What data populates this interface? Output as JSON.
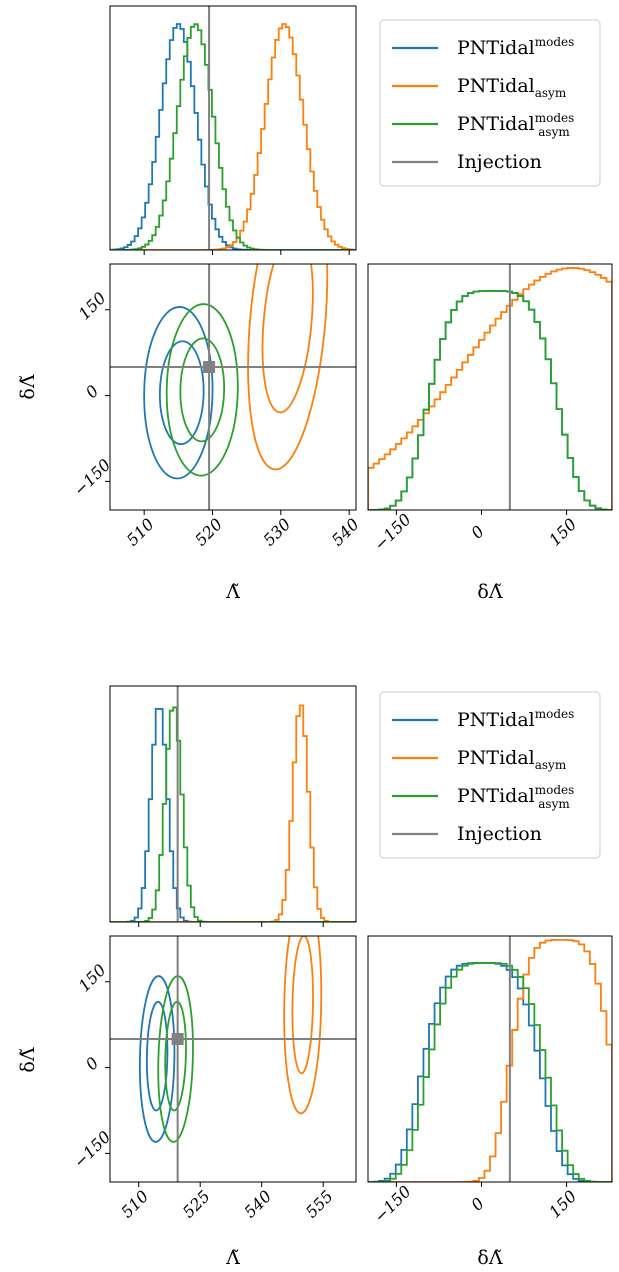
{
  "colors": {
    "modes": "#1f77b4",
    "asym": "#ff7f0e",
    "modes_asym": "#2ca02c",
    "injection": "#808080"
  },
  "legend": {
    "entries": [
      {
        "base": "PNTidal",
        "sup": "modes",
        "sub": "",
        "color": "modes"
      },
      {
        "base": "PNTidal",
        "sup": "",
        "sub": "asym",
        "color": "asym"
      },
      {
        "base": "PNTidal",
        "sup": "modes",
        "sub": "asym",
        "color": "modes_asym"
      },
      {
        "base": "Injection",
        "sup": "",
        "sub": "",
        "color": "injection"
      }
    ]
  },
  "chart_data": [
    {
      "type": "corner",
      "xlabel": "Λ̃",
      "ylabel": "δΛ̃",
      "lambda_range": [
        505,
        541
      ],
      "lambda_ticks": [
        510,
        520,
        530,
        540
      ],
      "dlambda_range": [
        -200,
        230
      ],
      "dlambda_ticks": [
        -150,
        0,
        150
      ],
      "injection": {
        "lambda": 519.5,
        "dlambda": 50
      },
      "series": [
        {
          "name": "PNTidal^modes",
          "color": "modes",
          "lambda_mean": 515,
          "lambda_sd": 2.6,
          "dlambda_shape": "hump",
          "dlambda_center": 20,
          "dlambda_width": 140,
          "contours": [
            {
              "cx": 515.5,
              "cy": 5,
              "rx": 3.2,
              "ry": 90,
              "rot": 0.05
            },
            {
              "cx": 515,
              "cy": 5,
              "rx": 5.0,
              "ry": 150,
              "rot": 0.05
            }
          ]
        },
        {
          "name": "PNTidal_asym",
          "color": "asym",
          "lambda_mean": 530.5,
          "lambda_sd": 2.8,
          "dlambda_shape": "rising",
          "dlambda_center": 160,
          "dlambda_width": 190,
          "contours": [
            {
              "cx": 531,
              "cy": 130,
              "rx": 3.5,
              "ry": 160,
              "rot": 0.25
            },
            {
              "cx": 531,
              "cy": 130,
              "rx": 5.5,
              "ry": 260,
              "rot": 0.25
            }
          ]
        },
        {
          "name": "PNTidal^modes_asym",
          "color": "modes_asym",
          "lambda_mean": 517.5,
          "lambda_sd": 2.6,
          "dlambda_shape": "hump",
          "dlambda_center": 20,
          "dlambda_width": 140,
          "contours": [
            {
              "cx": 518.5,
              "cy": 10,
              "rx": 3.2,
              "ry": 90,
              "rot": 0.05
            },
            {
              "cx": 518.5,
              "cy": 10,
              "rx": 5.2,
              "ry": 150,
              "rot": 0.05
            }
          ]
        }
      ]
    },
    {
      "type": "corner",
      "xlabel": "Λ̃",
      "ylabel": "δΛ̃",
      "lambda_range": [
        503,
        563
      ],
      "lambda_ticks": [
        510,
        525,
        540,
        555
      ],
      "dlambda_range": [
        -200,
        230
      ],
      "dlambda_ticks": [
        -150,
        0,
        150
      ],
      "injection": {
        "lambda": 519.5,
        "dlambda": 50
      },
      "series": [
        {
          "name": "PNTidal^modes",
          "color": "modes",
          "lambda_mean": 515,
          "lambda_sd": 2.0,
          "dlambda_shape": "hump",
          "dlambda_center": 0,
          "dlambda_width": 130,
          "contours": [
            {
              "cx": 514.5,
              "cy": 20,
              "rx": 2.5,
              "ry": 95,
              "rot": 0.05
            },
            {
              "cx": 514.5,
              "cy": 15,
              "rx": 4.2,
              "ry": 145,
              "rot": 0.05
            }
          ]
        },
        {
          "name": "PNTidal_asym",
          "color": "asym",
          "lambda_mean": 549.5,
          "lambda_sd": 1.9,
          "dlambda_shape": "hump",
          "dlambda_center": 140,
          "dlambda_width": 110,
          "contours": [
            {
              "cx": 550,
              "cy": 110,
              "rx": 2.5,
              "ry": 120,
              "rot": 0.05
            },
            {
              "cx": 550,
              "cy": 110,
              "rx": 4.5,
              "ry": 190,
              "rot": 0.05
            }
          ]
        },
        {
          "name": "PNTidal^modes_asym",
          "color": "modes_asym",
          "lambda_mean": 518.5,
          "lambda_sd": 2.0,
          "dlambda_shape": "hump",
          "dlambda_center": 10,
          "dlambda_width": 130,
          "contours": [
            {
              "cx": 519,
              "cy": 20,
              "rx": 2.5,
              "ry": 95,
              "rot": 0.08
            },
            {
              "cx": 519,
              "cy": 15,
              "rx": 4.2,
              "ry": 145,
              "rot": 0.08
            }
          ]
        }
      ]
    }
  ]
}
